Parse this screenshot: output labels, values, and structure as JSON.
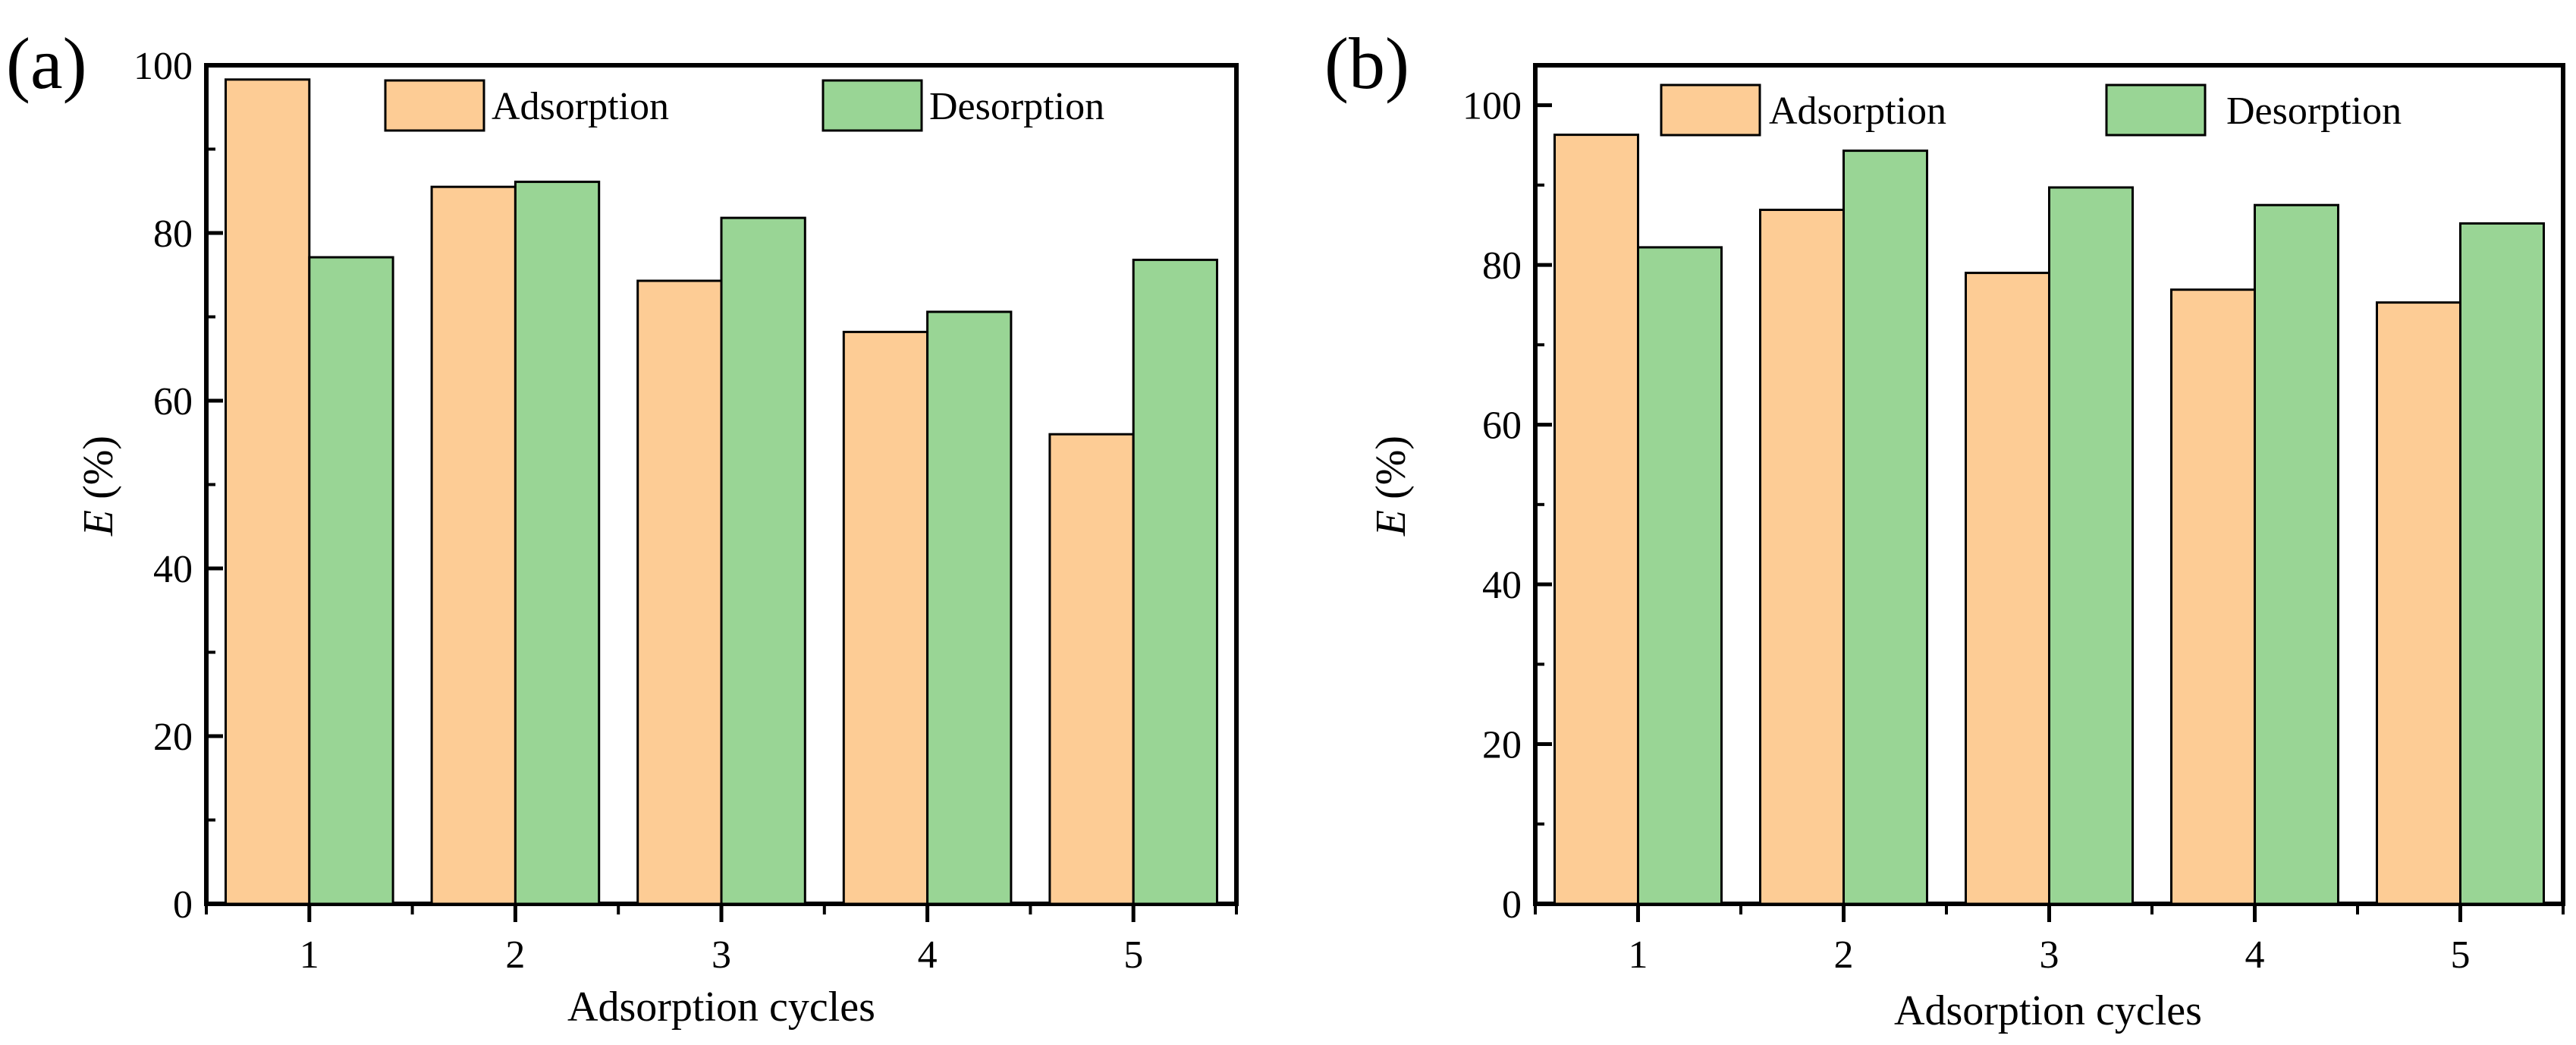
{
  "colors": {
    "adsorption": "#fdcc95",
    "desorption": "#99d595",
    "axis": "#000000"
  },
  "chart_data": [
    {
      "type": "bar",
      "panel_label": "(a)",
      "categories": [
        "1",
        "2",
        "3",
        "4",
        "5"
      ],
      "series": [
        {
          "name": "Adsorption",
          "values": [
            98.3,
            85.5,
            74.3,
            68.2,
            56.0
          ]
        },
        {
          "name": "Desorption",
          "values": [
            77.1,
            86.1,
            81.8,
            70.6,
            76.8
          ]
        }
      ],
      "xlabel": "Adsorption cycles",
      "ylabel_var": "E",
      "ylabel_unit": " (%)",
      "ylim": [
        0,
        100
      ],
      "yticks": [
        "0",
        "20",
        "40",
        "60",
        "80",
        "100"
      ],
      "grid": false,
      "legend": "top, horizontal"
    },
    {
      "type": "bar",
      "panel_label": "(b)",
      "categories": [
        "1",
        "2",
        "3",
        "4",
        "5"
      ],
      "series": [
        {
          "name": "Adsorption",
          "values": [
            96.3,
            86.9,
            79.0,
            76.9,
            75.3
          ]
        },
        {
          "name": "Desorption",
          "values": [
            82.2,
            94.3,
            89.7,
            87.5,
            85.2
          ]
        }
      ],
      "xlabel": "Adsorption cycles",
      "ylabel_var": "E",
      "ylabel_unit": " (%)",
      "ylim": [
        0,
        105
      ],
      "yticks": [
        "0",
        "20",
        "40",
        "60",
        "80",
        "100"
      ],
      "grid": false,
      "legend": "top, horizontal"
    }
  ]
}
